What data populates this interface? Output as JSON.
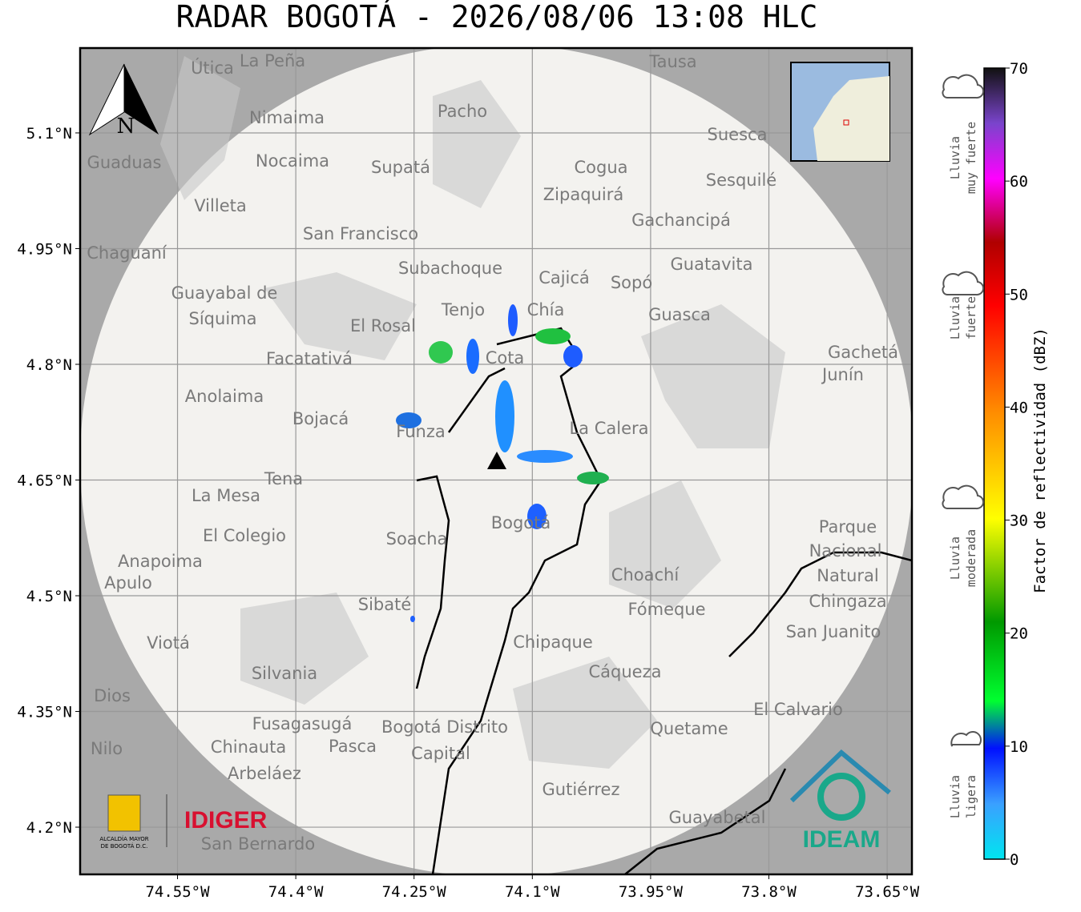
{
  "title": "RADAR BOGOTÁ - 2026/08/06 13:08 HLC",
  "map": {
    "lonlim": [
      -74.6735,
      -73.6186
    ],
    "latlim": [
      4.1388,
      5.21
    ],
    "xticks": [
      {
        "value": -74.55,
        "label": "74.55°W"
      },
      {
        "value": -74.4,
        "label": "74.4°W"
      },
      {
        "value": -74.25,
        "label": "74.25°W"
      },
      {
        "value": -74.1,
        "label": "74.1°W"
      },
      {
        "value": -73.95,
        "label": "73.95°W"
      },
      {
        "value": -73.8,
        "label": "73.8°W"
      },
      {
        "value": -73.65,
        "label": "73.65°W"
      }
    ],
    "yticks": [
      {
        "value": 5.1,
        "label": "5.1°N"
      },
      {
        "value": 4.95,
        "label": "4.95°N"
      },
      {
        "value": 4.8,
        "label": "4.8°N"
      },
      {
        "value": 4.65,
        "label": "4.65°N"
      },
      {
        "value": 4.5,
        "label": "4.5°N"
      },
      {
        "value": 4.35,
        "label": "4.35°N"
      },
      {
        "value": 4.2,
        "label": "4.2°N"
      }
    ],
    "north": "N",
    "places": [
      "La Peña",
      "Útica",
      "Tausa",
      "Pacho",
      "Nimaima",
      "Guaduas",
      "Nocaima",
      "Supatá",
      "Suesca",
      "Cogua",
      "Sesquilé",
      "Zipaquirá",
      "Villeta",
      "Gachancipá",
      "San Francisco",
      "Chaguaní",
      "Subachoque",
      "Guatavita",
      "Cajicá",
      "Sopó",
      "Guayabal de",
      "Síquima",
      "Tenjo",
      "Chía",
      "Guasca",
      "El Rosal",
      "Cota",
      "Facatativá",
      "Gachetá",
      "Junín",
      "Anolaima",
      "Bojacá",
      "Funza",
      "La Calera",
      "Tena",
      "La Mesa",
      "Bogotá",
      "Parque",
      "Nacional",
      "Natural",
      "Chingaza",
      "El Colegio",
      "Soacha",
      "Anapoima",
      "Apulo",
      "Choachí",
      "Sibaté",
      "Fómeque",
      "San Juanito",
      "Viotá",
      "Chipaque",
      "Silvania",
      "Cáqueza",
      "El Calvario",
      "Fusagasugá",
      "Bogotá Distrito",
      "Capital",
      "Quetame",
      "Pasca",
      "Chinauta",
      "Nilo",
      "Arbeláez",
      "Gutiérrez",
      "Guayabetal",
      "San Bernardo",
      "Dios"
    ]
  },
  "colorbar": {
    "label": "Factor de reflectividad (dBZ)",
    "lim": [
      0,
      70
    ],
    "ticks": [
      0,
      10,
      20,
      30,
      40,
      50,
      60,
      70
    ],
    "categories": [
      [
        "Lluvia",
        "muy fuerte"
      ],
      [
        "Lluvia",
        "fuerte"
      ],
      [
        "Lluvia",
        "moderada"
      ],
      [
        "Lluvia",
        "ligera"
      ]
    ]
  },
  "logos": {
    "alcaldia": [
      "ALCALDÍA MAYOR",
      "DE BOGOTÁ D.C."
    ],
    "idiger": "IDIGER",
    "ideam": "IDEAM"
  }
}
